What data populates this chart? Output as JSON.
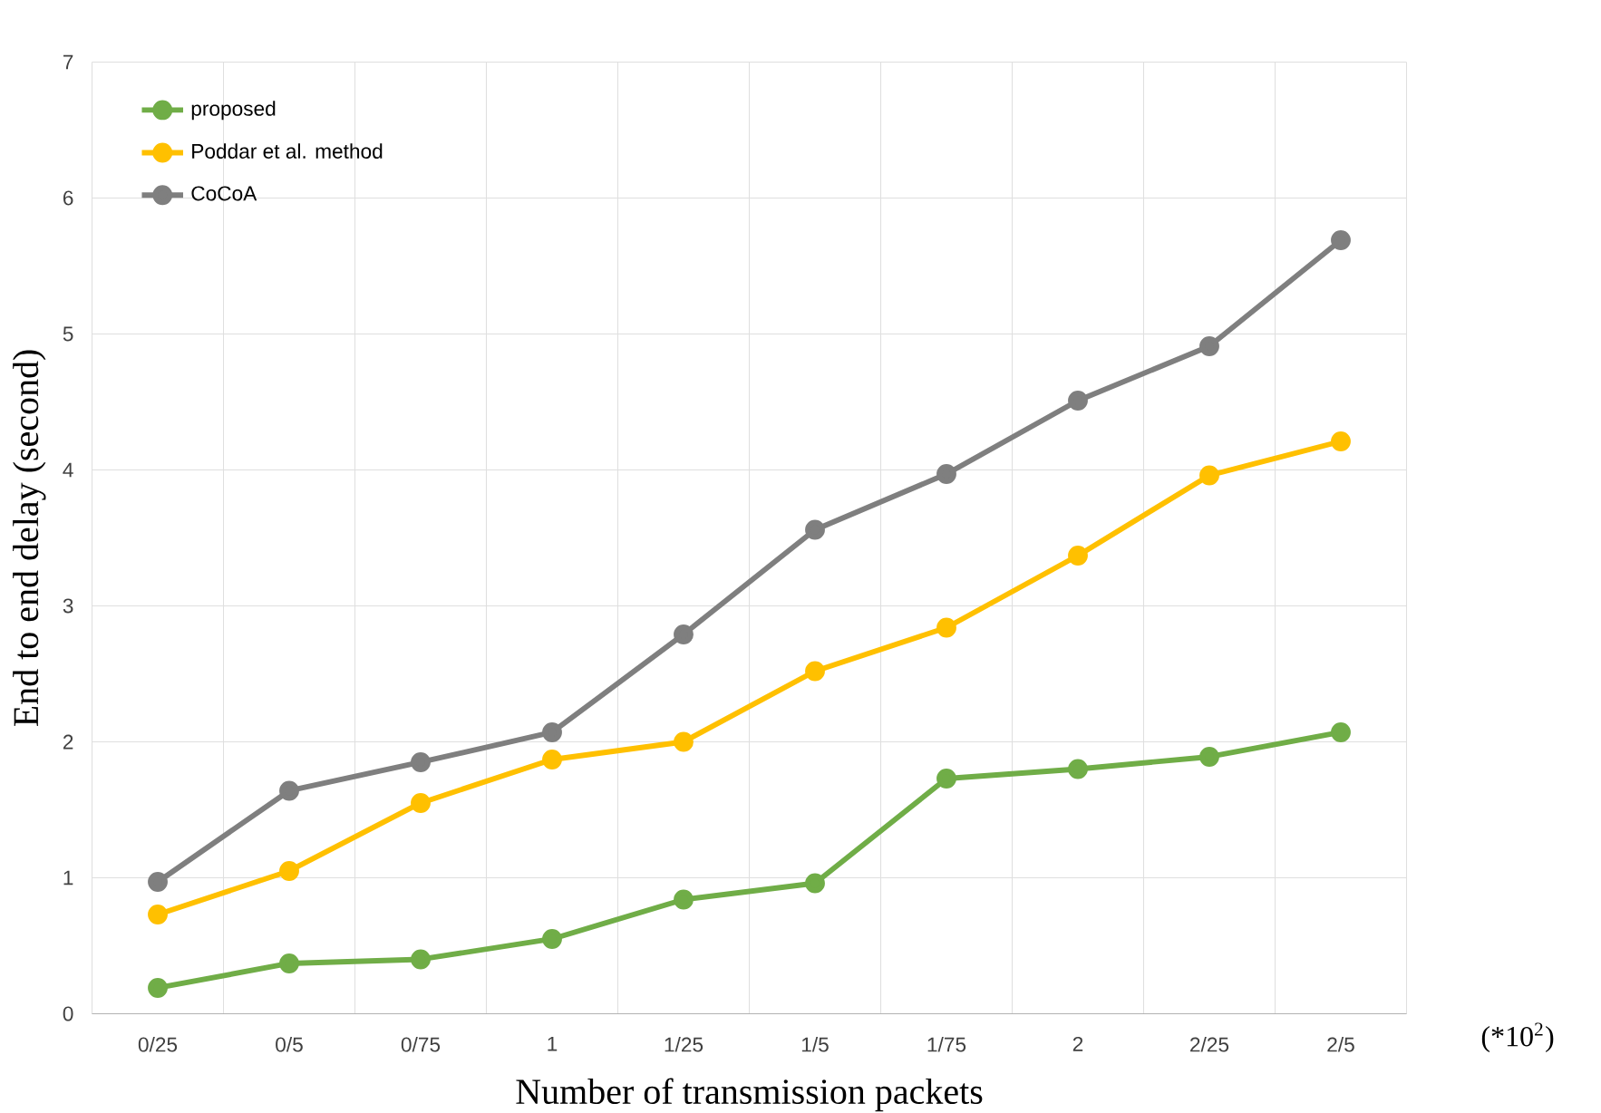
{
  "chart_data": {
    "type": "line",
    "xlabel": "Number of transmission packets",
    "ylabel": "End to end delay (second)",
    "categories": [
      "0/25",
      "0/5",
      "0/75",
      "1",
      "1/25",
      "1/5",
      "1/75",
      "2",
      "2/25",
      "2/5"
    ],
    "series": [
      {
        "name": "proposed",
        "color": "#70ad47",
        "values": [
          0.19,
          0.37,
          0.4,
          0.55,
          0.84,
          0.96,
          1.73,
          1.8,
          1.89,
          2.07
        ]
      },
      {
        "name": "Poddar et al. method",
        "color": "#ffc000",
        "values": [
          0.73,
          1.05,
          1.55,
          1.87,
          2.0,
          2.52,
          2.84,
          3.37,
          3.96,
          4.21
        ]
      },
      {
        "name": "CoCoA",
        "color": "#7f7f7f",
        "values": [
          0.97,
          1.64,
          1.85,
          2.07,
          2.79,
          3.56,
          3.97,
          4.51,
          4.91,
          5.69
        ]
      }
    ],
    "ylim": [
      0,
      7
    ],
    "yticks": [
      0,
      1,
      2,
      3,
      4,
      5,
      6,
      7
    ],
    "grid": true,
    "legend": "top left",
    "marker": "circle",
    "line_style": "solid",
    "annotations": [
      "(*10$^{2}$)"
    ]
  }
}
